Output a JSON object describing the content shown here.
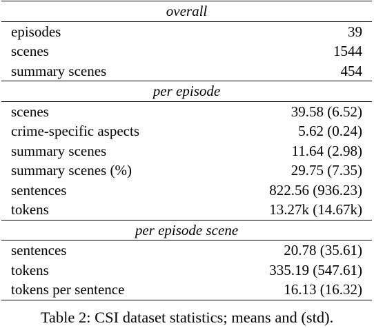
{
  "sections": [
    {
      "title": "overall",
      "rows": [
        {
          "label": "episodes",
          "value": "39"
        },
        {
          "label": "scenes",
          "value": "1544"
        },
        {
          "label": "summary scenes",
          "value": "454"
        }
      ]
    },
    {
      "title": "per episode",
      "rows": [
        {
          "label": "scenes",
          "value": "39.58 (6.52)"
        },
        {
          "label": "crime-specific aspects",
          "value": "5.62 (0.24)"
        },
        {
          "label": "summary scenes",
          "value": "11.64 (2.98)"
        },
        {
          "label": "summary scenes (%)",
          "value": "29.75 (7.35)"
        },
        {
          "label": "sentences",
          "value": "822.56 (936.23)"
        },
        {
          "label": "tokens",
          "value": "13.27k (14.67k)"
        }
      ]
    },
    {
      "title": "per episode scene",
      "rows": [
        {
          "label": "sentences",
          "value": "20.78 (35.61)"
        },
        {
          "label": "tokens",
          "value": "335.19 (547.61)"
        },
        {
          "label": "tokens per sentence",
          "value": "16.13 (16.32)"
        }
      ]
    }
  ],
  "caption": "Table 2: CSI dataset statistics; means and (std)."
}
